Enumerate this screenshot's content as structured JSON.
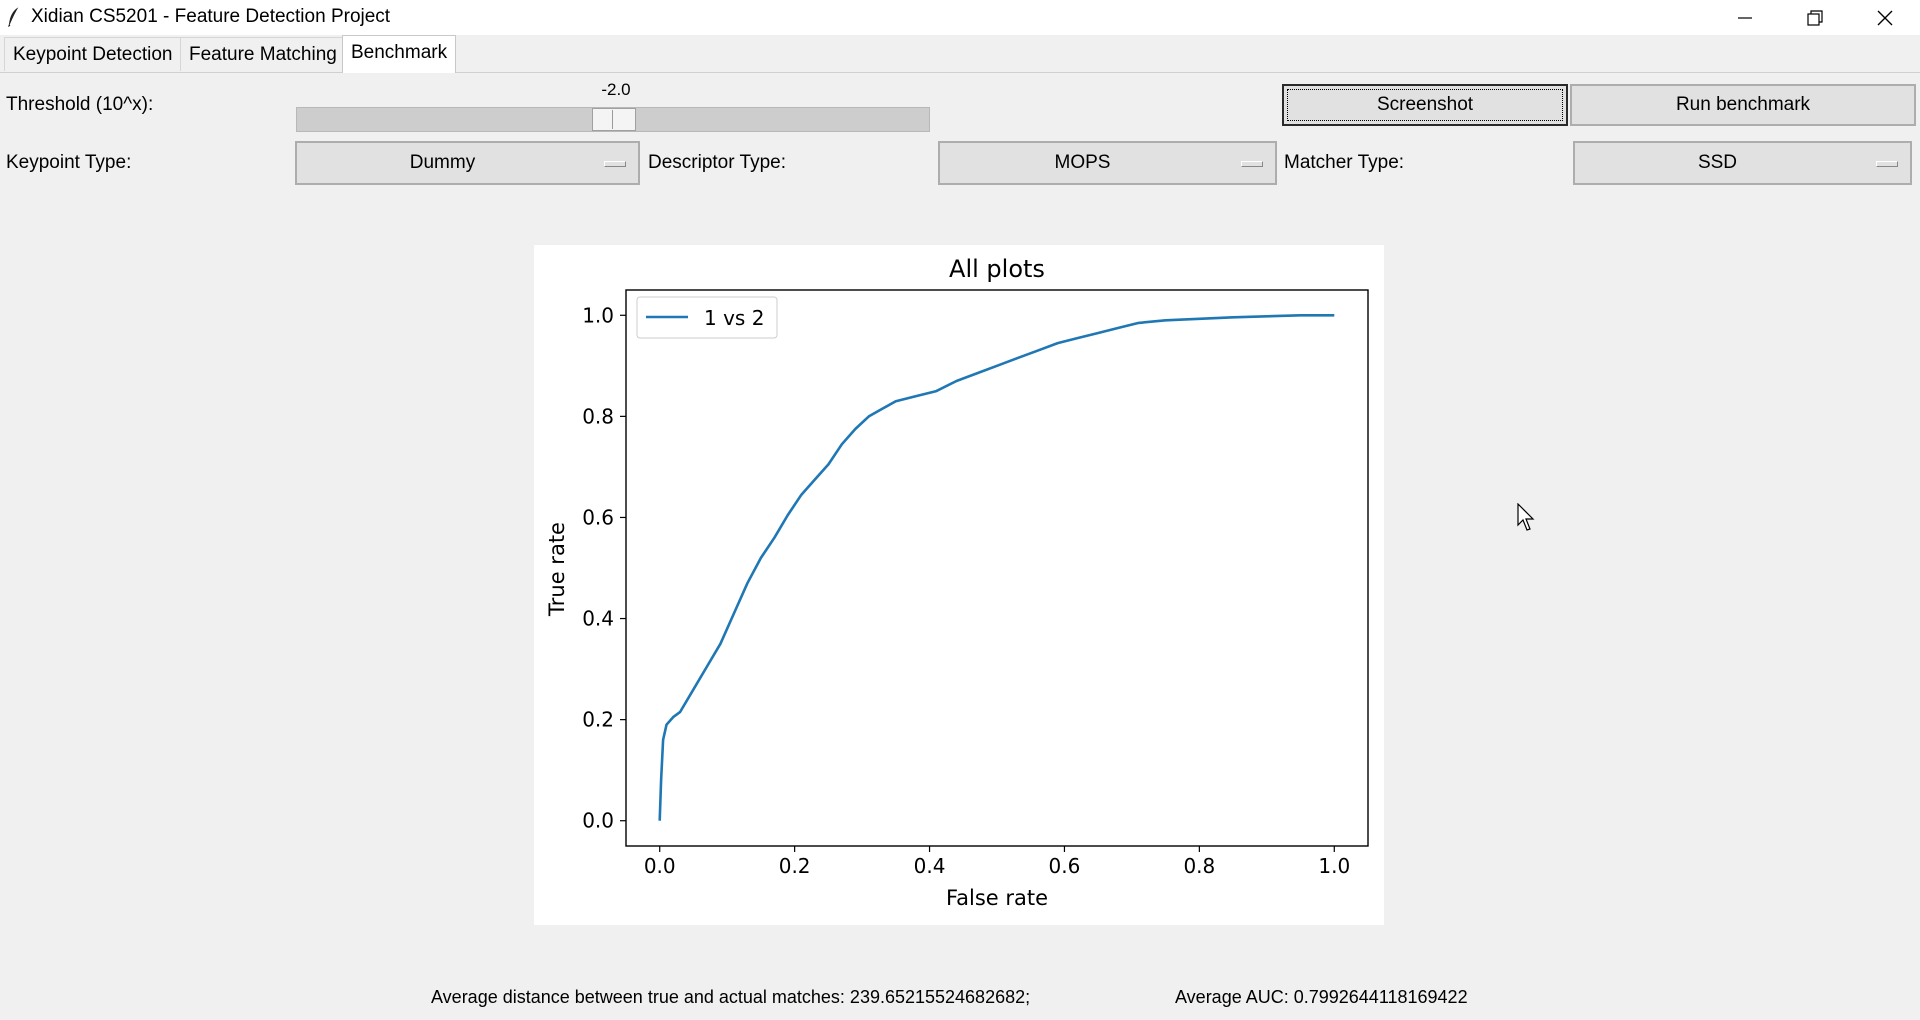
{
  "window": {
    "title": "Xidian CS5201 - Feature Detection Project",
    "controls": [
      "minimize-icon",
      "restore-icon",
      "close-icon"
    ]
  },
  "tabs": [
    {
      "label": "Keypoint Detection",
      "active": false
    },
    {
      "label": "Feature Matching",
      "active": false
    },
    {
      "label": "Benchmark",
      "active": true
    }
  ],
  "controls": {
    "threshold_label": "Threshold (10^x):",
    "threshold_value": "-2.0",
    "threshold_position": 0.5,
    "screenshot_label": "Screenshot",
    "run_benchmark_label": "Run benchmark",
    "keypoint_type_label": "Keypoint Type:",
    "keypoint_type_value": "Dummy",
    "descriptor_type_label": "Descriptor Type:",
    "descriptor_type_value": "MOPS",
    "matcher_type_label": "Matcher Type:",
    "matcher_type_value": "SSD"
  },
  "chart_data": {
    "type": "line",
    "title": "All plots",
    "xlabel": "False rate",
    "ylabel": "True rate",
    "xlim": [
      -0.05,
      1.05
    ],
    "ylim": [
      -0.05,
      1.05
    ],
    "xticks": [
      "0.0",
      "0.2",
      "0.4",
      "0.6",
      "0.8",
      "1.0"
    ],
    "yticks": [
      "0.0",
      "0.2",
      "0.4",
      "0.6",
      "0.8",
      "1.0"
    ],
    "grid": false,
    "legend_position": "top-left",
    "series": [
      {
        "name": "1 vs 2",
        "color": "#1f77b4",
        "x": [
          0.0,
          0.002,
          0.005,
          0.01,
          0.02,
          0.03,
          0.05,
          0.07,
          0.09,
          0.11,
          0.13,
          0.15,
          0.17,
          0.19,
          0.21,
          0.23,
          0.25,
          0.27,
          0.29,
          0.31,
          0.33,
          0.35,
          0.38,
          0.41,
          0.44,
          0.47,
          0.5,
          0.53,
          0.56,
          0.59,
          0.62,
          0.65,
          0.68,
          0.71,
          0.75,
          0.8,
          0.85,
          0.9,
          0.95,
          1.0
        ],
        "y": [
          0.0,
          0.08,
          0.16,
          0.19,
          0.205,
          0.215,
          0.26,
          0.305,
          0.35,
          0.41,
          0.47,
          0.52,
          0.56,
          0.605,
          0.645,
          0.675,
          0.705,
          0.745,
          0.775,
          0.8,
          0.815,
          0.83,
          0.84,
          0.85,
          0.87,
          0.885,
          0.9,
          0.915,
          0.93,
          0.945,
          0.955,
          0.965,
          0.975,
          0.985,
          0.99,
          0.993,
          0.996,
          0.998,
          1.0,
          1.0
        ]
      }
    ]
  },
  "status": {
    "distance_text": "Average distance between true and actual matches: 239.65215524682682;",
    "auc_text": "Average AUC: 0.7992644118169422"
  }
}
